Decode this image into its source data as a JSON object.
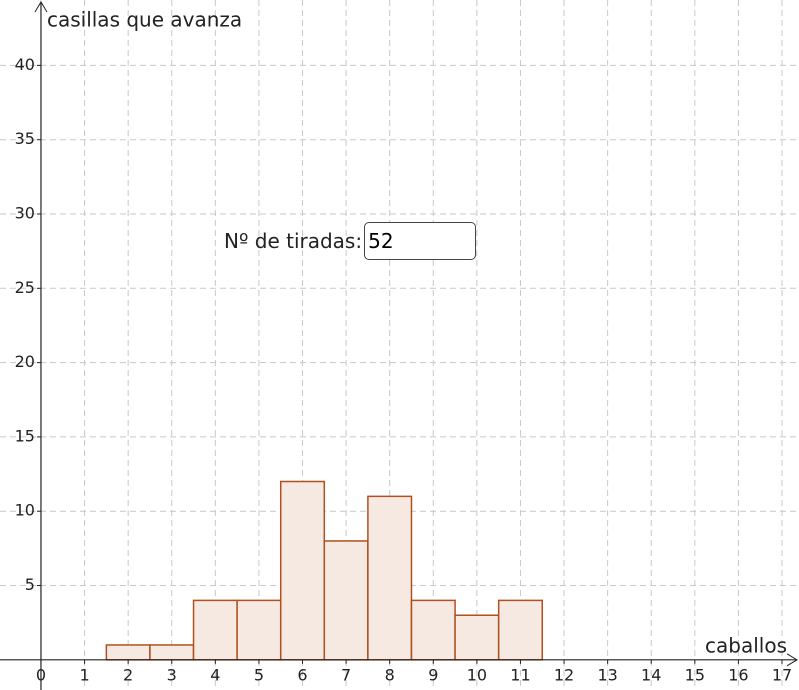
{
  "chart_data": {
    "type": "histogram",
    "x_label": "caballos",
    "y_label": "casillas que avanza",
    "bins": [
      1.5,
      2.5,
      3.5,
      4.5,
      5.5,
      6.5,
      7.5,
      8.5,
      9.5,
      10.5,
      11.5
    ],
    "values": [
      1,
      1,
      4,
      4,
      12,
      8,
      11,
      4,
      3,
      4
    ],
    "color": "#f5e9e2",
    "edge_color": "#b0501f",
    "xlim": [
      -0.94,
      17.39
    ],
    "ylim": [
      -2.03,
      44.4
    ],
    "xticks": [
      0,
      1,
      2,
      3,
      4,
      5,
      6,
      7,
      8,
      9,
      10,
      11,
      12,
      13,
      14,
      15,
      16,
      17
    ],
    "yticks": [
      5,
      10,
      15,
      20,
      25,
      30,
      35,
      40
    ],
    "grid": true
  },
  "control": {
    "label": "Nº de tiradas:",
    "value": 52
  }
}
